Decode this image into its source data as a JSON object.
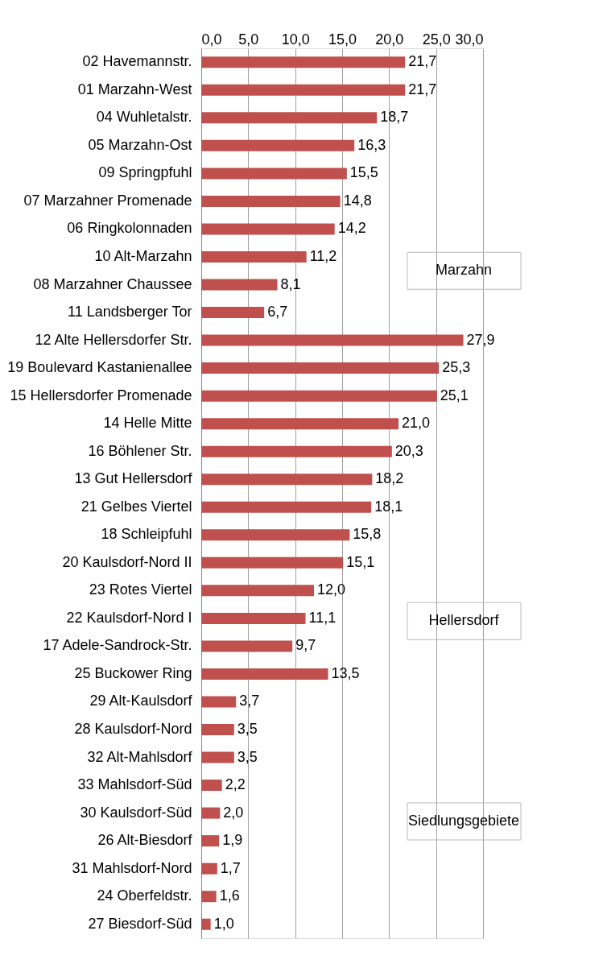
{
  "chart_data": {
    "type": "bar",
    "orientation": "horizontal",
    "categories": [
      "02 Havemannstr.",
      "01 Marzahn-West",
      "04 Wuhletalstr.",
      "05 Marzahn-Ost",
      "09 Springpfuhl",
      "07 Marzahner Promenade",
      "06 Ringkolonnaden",
      "10 Alt-Marzahn",
      "08 Marzahner Chaussee",
      "11 Landsberger Tor",
      "12 Alte Hellersdorfer Str.",
      "19 Boulevard Kastanienallee",
      "15 Hellersdorfer Promenade",
      "14 Helle Mitte",
      "16 Böhlener Str.",
      "13 Gut Hellersdorf",
      "21 Gelbes Viertel",
      "18 Schleipfuhl",
      "20 Kaulsdorf-Nord II",
      "23 Rotes Viertel",
      "22 Kaulsdorf-Nord I",
      "17 Adele-Sandrock-Str.",
      "25 Buckower Ring",
      "29 Alt-Kaulsdorf",
      "28 Kaulsdorf-Nord",
      "32 Alt-Mahlsdorf",
      "33 Mahlsdorf-Süd",
      "30 Kaulsdorf-Süd",
      "26 Alt-Biesdorf",
      "31 Mahlsdorf-Nord",
      "24 Oberfeldstr.",
      "27 Biesdorf-Süd"
    ],
    "values": [
      21.7,
      21.7,
      18.7,
      16.3,
      15.5,
      14.8,
      14.2,
      11.2,
      8.1,
      6.7,
      27.9,
      25.3,
      25.1,
      21.0,
      20.3,
      18.2,
      18.1,
      15.8,
      15.1,
      12.0,
      11.1,
      9.7,
      13.5,
      3.7,
      3.5,
      3.5,
      2.2,
      2.0,
      1.9,
      1.7,
      1.6,
      1.0
    ],
    "value_labels": [
      "21,7",
      "21,7",
      "18,7",
      "16,3",
      "15,5",
      "14,8",
      "14,2",
      "11,2",
      "8,1",
      "6,7",
      "27,9",
      "25,3",
      "25,1",
      "21,0",
      "20,3",
      "18,2",
      "18,1",
      "15,8",
      "15,1",
      "12,0",
      "11,1",
      "9,7",
      "13,5",
      "3,7",
      "3,5",
      "3,5",
      "2,2",
      "2,0",
      "1,9",
      "1,7",
      "1,6",
      "1,0"
    ],
    "color": "#c0504d",
    "xlim": [
      0,
      30
    ],
    "xticks": [
      {
        "value": 0,
        "label": "0,0"
      },
      {
        "value": 5,
        "label": "5,0"
      },
      {
        "value": 10,
        "label": "10,0"
      },
      {
        "value": 15,
        "label": "15,0"
      },
      {
        "value": 20,
        "label": "20,0"
      },
      {
        "value": 25,
        "label": "25,0"
      },
      {
        "value": 30,
        "label": "30,0"
      }
    ],
    "grid": "x",
    "annotations": [
      "Marzahn",
      "Hellersdorf",
      "Siedlungsgebiete"
    ]
  }
}
